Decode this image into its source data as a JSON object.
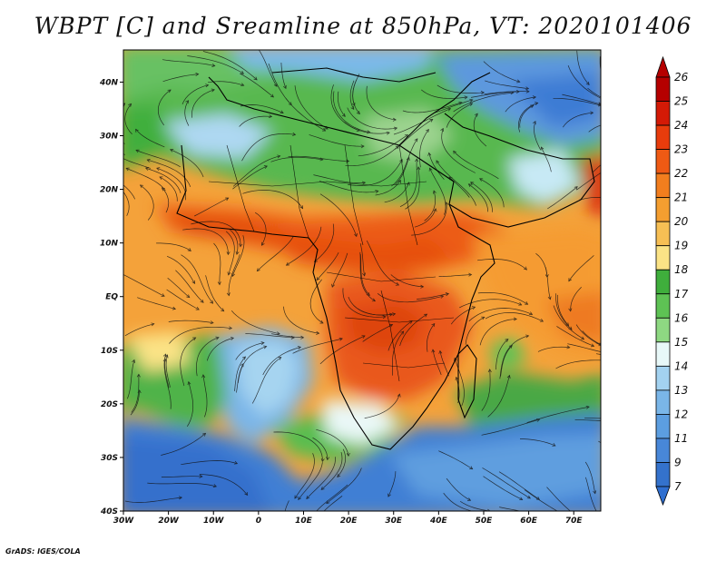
{
  "title": "WBPT [C] and Sreamline at 850hPa, VT: 2020101406",
  "credit": "GrADS: IGES/COLA",
  "map": {
    "variable": "Wet-bulb potential temperature (C) with streamlines",
    "level": "850hPa",
    "valid_time": "2020101406",
    "lat_labels": [
      "40N",
      "30N",
      "20N",
      "10N",
      "EQ",
      "10S",
      "20S",
      "30S",
      "40S"
    ],
    "lat_values": [
      40,
      30,
      20,
      10,
      0,
      -10,
      -20,
      -30,
      -40
    ],
    "lon_labels": [
      "30W",
      "20W",
      "10W",
      "0",
      "10E",
      "20E",
      "30E",
      "40E",
      "50E",
      "60E",
      "70E"
    ],
    "lon_values": [
      -30,
      -20,
      -10,
      0,
      10,
      20,
      30,
      40,
      50,
      60,
      70
    ],
    "lon_range": [
      -30,
      76
    ],
    "lat_range": [
      -40,
      46
    ]
  },
  "colorbar": {
    "labels": [
      "26",
      "25",
      "24",
      "23",
      "22",
      "21",
      "20",
      "19",
      "18",
      "17",
      "16",
      "15",
      "14",
      "13",
      "12",
      "11",
      "9",
      "7"
    ],
    "colors": [
      "#b50000",
      "#d41a06",
      "#e83c0c",
      "#ef5a14",
      "#f27e1e",
      "#f49e30",
      "#f7bf54",
      "#fbe386",
      "#3fae3c",
      "#5ec254",
      "#8ed882",
      "#e8f8f8",
      "#a3d2f0",
      "#7ab6e8",
      "#5c9ee0",
      "#4887d8",
      "#3472cc"
    ],
    "arrow_top_color": "#b50000",
    "arrow_bottom_color": "#2f6fd0"
  }
}
